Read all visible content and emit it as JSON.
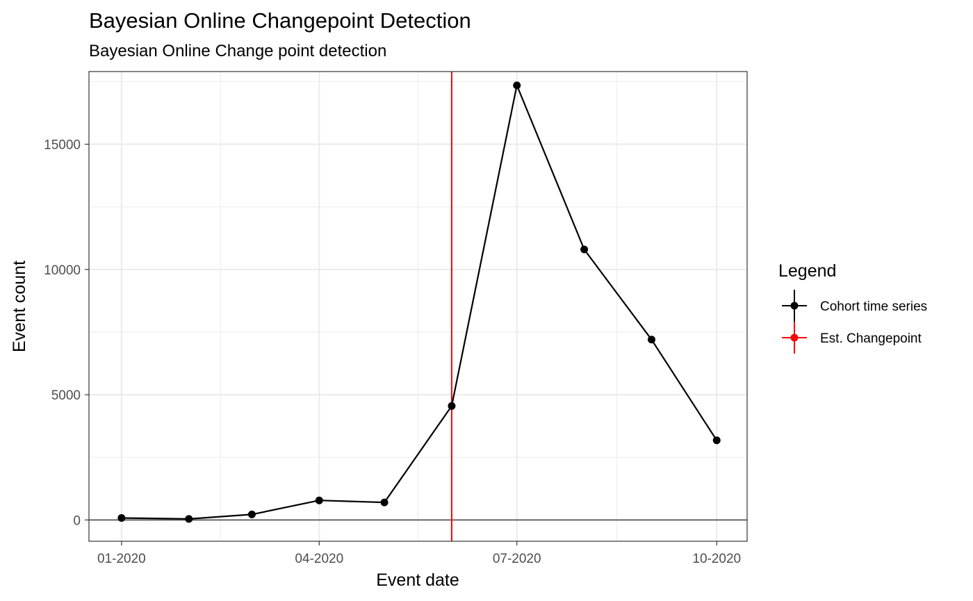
{
  "chart_data": {
    "type": "line",
    "title": "Bayesian Online Changepoint Detection",
    "subtitle": "Bayesian Online Change point detection",
    "xlabel": "Event date",
    "ylabel": "Event count",
    "x_ticks": [
      "01-2020",
      "04-2020",
      "07-2020",
      "10-2020"
    ],
    "y_ticks": [
      0,
      5000,
      10000,
      15000
    ],
    "ylim": [
      -850,
      17900
    ],
    "xlim": [
      "2019-12-17",
      "2020-10-15"
    ],
    "grid": true,
    "legend": {
      "title": "Legend",
      "position": "right",
      "entries": [
        {
          "label": "Cohort time series",
          "color": "#000000"
        },
        {
          "label": "Est. Changepoint",
          "color": "#ff0000"
        }
      ]
    },
    "series": [
      {
        "name": "Cohort time series",
        "color": "#000000",
        "x": [
          "2020-01-01",
          "2020-02-01",
          "2020-03-01",
          "2020-04-01",
          "2020-05-01",
          "2020-06-01",
          "2020-07-01",
          "2020-08-01",
          "2020-09-01",
          "2020-10-01"
        ],
        "values": [
          80,
          40,
          220,
          780,
          700,
          4550,
          17350,
          10800,
          7200,
          3180
        ]
      }
    ],
    "changepoint": {
      "name": "Est. Changepoint",
      "x": "2020-06-01",
      "color": "#ff0000"
    },
    "hline": {
      "y": 0,
      "color": "#666666"
    }
  }
}
